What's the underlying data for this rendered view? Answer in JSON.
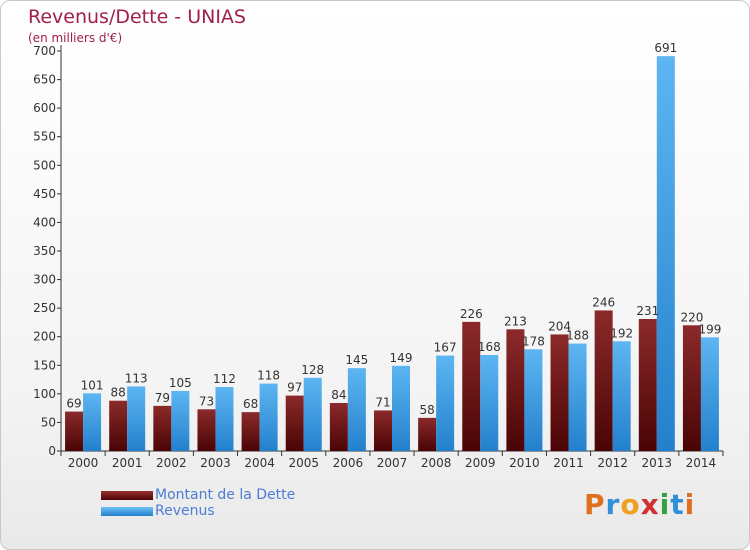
{
  "header": {
    "title": "Revenus/Dette - UNIAS",
    "subtitle": "(en milliers d'€)"
  },
  "chart_data": {
    "type": "bar",
    "categories": [
      "2000",
      "2001",
      "2002",
      "2003",
      "2004",
      "2005",
      "2006",
      "2007",
      "2008",
      "2009",
      "2010",
      "2011",
      "2012",
      "2013",
      "2014"
    ],
    "series": [
      {
        "name": "Montant de la Dette",
        "color": "#7a0f12",
        "values": [
          69,
          88,
          79,
          73,
          68,
          97,
          84,
          71,
          58,
          226,
          213,
          204,
          246,
          231,
          220
        ]
      },
      {
        "name": "Revenus",
        "color": "#3a9ee6",
        "values": [
          101,
          113,
          105,
          112,
          118,
          128,
          145,
          149,
          167,
          168,
          178,
          188,
          192,
          691,
          199
        ]
      }
    ],
    "yticks": [
      0,
      50,
      100,
      150,
      200,
      250,
      300,
      350,
      400,
      450,
      500,
      550,
      600,
      650,
      700
    ],
    "ylim": [
      0,
      700
    ],
    "grid": false,
    "legend_position": "bottom-left"
  },
  "legend": {
    "items": [
      {
        "label": "Montant de la Dette",
        "color": "#7a0f12"
      },
      {
        "label": "Revenus",
        "color": "#3a9ee6"
      }
    ]
  },
  "logo": {
    "text": "Proxiti",
    "letter_colors": [
      "#e07020",
      "#2f8fd8",
      "#f0a020",
      "#d23030",
      "#30a040",
      "#2f8fd8",
      "#e07020"
    ]
  }
}
